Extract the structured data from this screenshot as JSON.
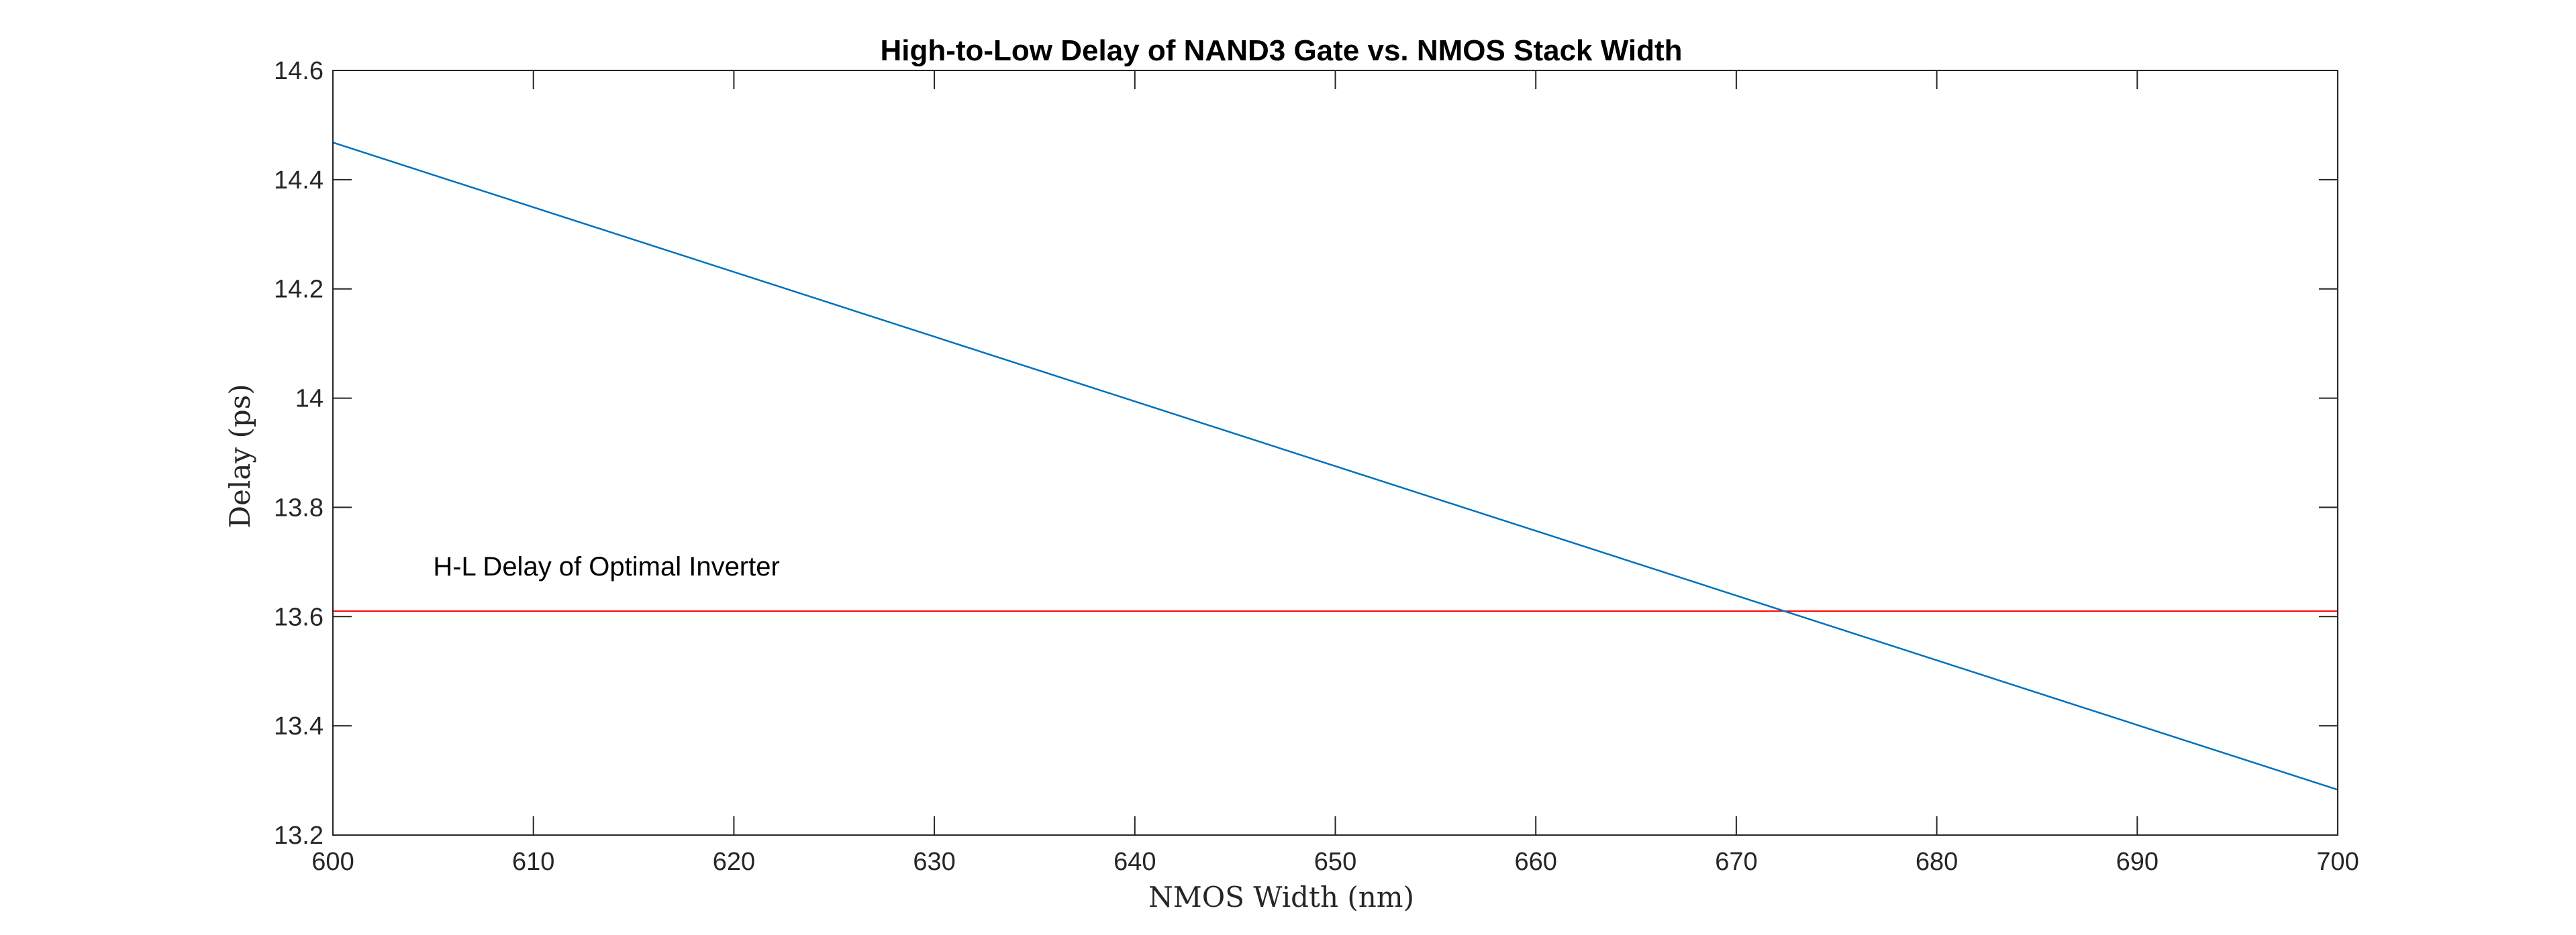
{
  "chart_data": {
    "type": "line",
    "title": "High-to-Low Delay of NAND3 Gate vs. NMOS Stack Width",
    "xlabel": "NMOS Width (nm)",
    "ylabel": "Delay (ps)",
    "xlim": [
      600,
      700
    ],
    "ylim": [
      13.2,
      14.6
    ],
    "xticks": [
      600,
      610,
      620,
      630,
      640,
      650,
      660,
      670,
      680,
      690,
      700
    ],
    "xtick_labels": [
      "600",
      "610",
      "620",
      "630",
      "640",
      "650",
      "660",
      "670",
      "680",
      "690",
      "700"
    ],
    "yticks": [
      13.2,
      13.4,
      13.6,
      13.8,
      14.0,
      14.2,
      14.4,
      14.6
    ],
    "ytick_labels": [
      "13.2",
      "13.4",
      "13.6",
      "13.8",
      "14",
      "14.2",
      "14.4",
      "14.6"
    ],
    "grid": false,
    "box": true,
    "series": [
      {
        "x": [
          600,
          700
        ],
        "y": [
          14.468,
          13.283
        ],
        "color": "#0072BD"
      }
    ],
    "reference_lines": [
      {
        "orientation": "horizontal",
        "y": 13.61,
        "color": "#FF0000"
      }
    ],
    "annotations": [
      {
        "text": "H-L Delay of Optimal Inverter",
        "x": 605,
        "y": 13.69
      }
    ]
  },
  "colors": {
    "axes": "#262626",
    "background": "#ffffff"
  }
}
